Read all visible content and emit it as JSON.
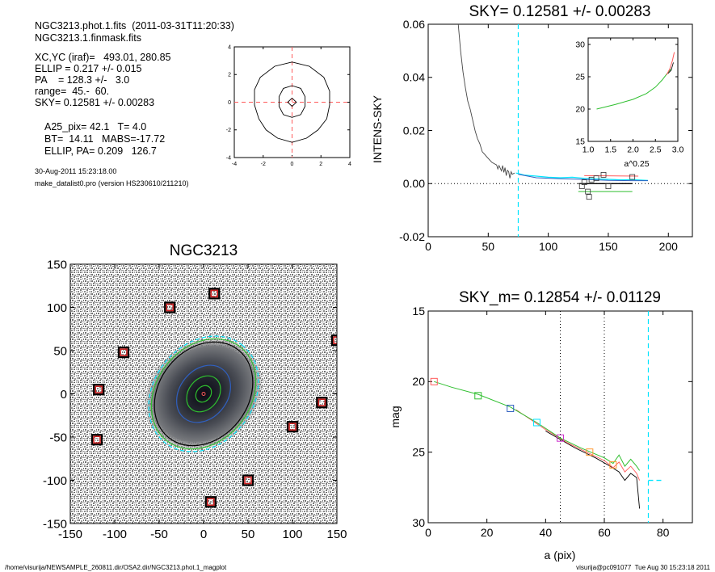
{
  "header": {
    "line1": "NGC3213.phot.1.fits  (2011-03-31T11:20:33)",
    "line2": "NGC3213.1.finmask.fits",
    "params": [
      "XC,YC (iraf)=   493.01, 280.85",
      "ELLIP = 0.217 +/- 0.015",
      "PA    = 128.3 +/-   3.0",
      "range=  45.-  60.",
      "SKY= 0.12581 +/- 0.00283"
    ],
    "params2": [
      "A25_pix= 42.1   T= 4.0",
      "BT=  14.11   MABS=-17.72",
      "ELLIP, PA= 0.209   126.7"
    ],
    "date": "30-Aug-2011 15:23:18.00",
    "program": "make_datalist0.pro (version HS230610/211210)"
  },
  "footer": {
    "left": "/home/visurija/NEWSAMPLE_260811.dir/OSA2.dir/NGC3213.phot.1_magplot",
    "right": "visurija@pc091077  Tue Aug 30 15:23:18 2011"
  },
  "colors": {
    "cyan": "#00e5ff",
    "green": "#2fbf2f",
    "red": "#ff5a5a",
    "blue": "#3060c0",
    "magenta": "#cc33cc",
    "orange": "#ff9933",
    "gray": "#9a9a9a"
  },
  "chart_data": [
    {
      "id": "contour",
      "type": "scatter",
      "title": "",
      "xlim": [
        -4,
        4
      ],
      "ylim": [
        -4,
        4
      ],
      "xticks": [
        "-4",
        "-2",
        "0",
        "2",
        "4"
      ],
      "yticks": [
        "-4",
        "-2",
        "0",
        "2",
        "4"
      ],
      "contours": [
        [
          [
            0,
            2.9
          ],
          [
            1.2,
            2.6
          ],
          [
            2.2,
            1.8
          ],
          [
            2.6,
            0.8
          ],
          [
            2.6,
            -0.2
          ],
          [
            2.4,
            -1.2
          ],
          [
            1.8,
            -2.0
          ],
          [
            1.0,
            -2.6
          ],
          [
            0,
            -2.9
          ],
          [
            -1.0,
            -2.6
          ],
          [
            -1.8,
            -2.0
          ],
          [
            -2.3,
            -1.2
          ],
          [
            -2.6,
            -0.2
          ],
          [
            -2.6,
            0.9
          ],
          [
            -2.2,
            1.8
          ],
          [
            -1.2,
            2.6
          ],
          [
            0,
            2.9
          ]
        ],
        [
          [
            0,
            1.2
          ],
          [
            0.6,
            1.0
          ],
          [
            0.9,
            0.4
          ],
          [
            0.9,
            -0.3
          ],
          [
            0.6,
            -0.9
          ],
          [
            0,
            -1.1
          ],
          [
            -0.6,
            -0.9
          ],
          [
            -0.9,
            -0.3
          ],
          [
            -0.9,
            0.4
          ],
          [
            -0.6,
            1.0
          ],
          [
            0,
            1.2
          ]
        ],
        [
          [
            0,
            0.3
          ],
          [
            0.3,
            0
          ],
          [
            0,
            -0.3
          ],
          [
            -0.3,
            0
          ],
          [
            0,
            0.3
          ]
        ]
      ],
      "center_dashes": {
        "x": 0,
        "y": 0
      }
    },
    {
      "id": "sky",
      "type": "line",
      "title": "SKY= 0.12581 +/- 0.00283",
      "ylabel": "INTENS-SKY",
      "xlim": [
        0,
        220
      ],
      "ylim": [
        -0.02,
        0.06
      ],
      "xticks": [
        "0",
        "50",
        "100",
        "150",
        "200"
      ],
      "yticks": [
        "-0.02",
        "0.00",
        "0.02",
        "0.04",
        "0.06"
      ],
      "profile": [
        [
          25,
          0.06
        ],
        [
          27,
          0.05
        ],
        [
          29,
          0.042
        ],
        [
          31,
          0.036
        ],
        [
          33,
          0.031
        ],
        [
          35,
          0.028
        ],
        [
          37,
          0.024
        ],
        [
          39,
          0.02
        ],
        [
          41,
          0.017
        ],
        [
          43,
          0.015
        ],
        [
          45,
          0.012
        ],
        [
          47,
          0.011
        ],
        [
          49,
          0.01
        ],
        [
          51,
          0.009
        ],
        [
          53,
          0.008
        ],
        [
          55,
          0.0075
        ],
        [
          57,
          0.007
        ],
        [
          58,
          0.0055
        ],
        [
          59,
          0.0068
        ],
        [
          61,
          0.0048
        ],
        [
          62,
          0.0068
        ],
        [
          63,
          0.0042
        ],
        [
          64,
          0.006
        ],
        [
          65,
          0.003
        ],
        [
          66,
          0.005
        ],
        [
          67,
          0.0045
        ],
        [
          68,
          0.002
        ],
        [
          69,
          0.0045
        ],
        [
          70,
          0.0035
        ],
        [
          72,
          0.004
        ]
      ],
      "cyan_line": [
        [
          73,
          0.004
        ],
        [
          80,
          0.0032
        ],
        [
          90,
          0.0028
        ],
        [
          100,
          0.0024
        ],
        [
          110,
          0.0022
        ],
        [
          120,
          0.0024
        ],
        [
          130,
          0.002
        ],
        [
          140,
          0.0018
        ],
        [
          150,
          0.0016
        ],
        [
          160,
          0.0014
        ],
        [
          170,
          0.0015
        ],
        [
          183,
          0.0012
        ]
      ],
      "blue_line": [
        [
          75,
          0.0035
        ],
        [
          90,
          0.0022
        ],
        [
          110,
          0.0018
        ],
        [
          130,
          0.0016
        ],
        [
          150,
          0.0012
        ],
        [
          170,
          0.0011
        ],
        [
          183,
          0.0011
        ]
      ],
      "red_line": [
        [
          130,
          0.003
        ],
        [
          175,
          0.0028
        ]
      ],
      "black_line": [
        [
          125,
          0.0
        ],
        [
          170,
          0.0
        ]
      ],
      "green_line": [
        [
          125,
          -0.003
        ],
        [
          170,
          -0.003
        ]
      ],
      "squares": [
        [
          128,
          -0.001
        ],
        [
          130,
          0.0005
        ],
        [
          133,
          -0.003
        ],
        [
          134,
          -0.005
        ],
        [
          136,
          0.0015
        ],
        [
          140,
          0.002
        ],
        [
          146,
          0.0033
        ],
        [
          150,
          -0.001
        ],
        [
          170,
          0.0025
        ]
      ],
      "vline_x": 75,
      "zero_dotted": 0,
      "inset": {
        "xlabel": "a^0.25",
        "xlim": [
          1.0,
          3.0
        ],
        "ylim": [
          15,
          31
        ],
        "xticks": [
          "1.0",
          "1.5",
          "2.0",
          "2.5",
          "3.0"
        ],
        "yticks": [
          "15",
          "20",
          "25",
          "30"
        ],
        "green": [
          [
            1.19,
            20.0
          ],
          [
            1.6,
            20.7
          ],
          [
            2.0,
            21.5
          ],
          [
            2.3,
            22.4
          ],
          [
            2.5,
            23.4
          ],
          [
            2.65,
            24.5
          ],
          [
            2.75,
            25.4
          ],
          [
            2.85,
            26.2
          ]
        ],
        "red": [
          [
            2.75,
            25.3
          ],
          [
            2.82,
            26.2
          ],
          [
            2.88,
            27.5
          ],
          [
            2.92,
            28.8
          ]
        ],
        "black": [
          [
            2.78,
            25.5
          ],
          [
            2.85,
            26.0
          ],
          [
            2.9,
            27.2
          ]
        ]
      }
    },
    {
      "id": "image",
      "type": "scatter",
      "title": "NGC3213",
      "xlim": [
        -150,
        150
      ],
      "ylim": [
        -150,
        150
      ],
      "xticks": [
        "-150",
        "-100",
        "-50",
        "0",
        "50",
        "100",
        "150"
      ],
      "yticks": [
        "-150",
        "-100",
        "-50",
        "0",
        "50",
        "100",
        "150"
      ],
      "masks": [
        [
          12,
          116
        ],
        [
          -38,
          100
        ],
        [
          -90,
          48
        ],
        [
          -118,
          5
        ],
        [
          -120,
          -53
        ],
        [
          133,
          -10
        ],
        [
          100,
          -38
        ],
        [
          50,
          -100
        ],
        [
          8,
          -125
        ],
        [
          150,
          62
        ]
      ],
      "ellipses": [
        {
          "a": 70,
          "b": 56,
          "pa": 128.3,
          "color": "#00e5ff",
          "dash": true
        },
        {
          "a": 67,
          "b": 53,
          "pa": 128.3,
          "color": "#2fbf2f",
          "dash": false
        },
        {
          "a": 63,
          "b": 50,
          "pa": 128.3,
          "color": "#000000",
          "dash": false
        },
        {
          "a": 35,
          "b": 27,
          "pa": 128.3,
          "color": "#3060c0",
          "dash": false
        },
        {
          "a": 22,
          "b": 17,
          "pa": 128.3,
          "color": "#2fbf2f",
          "dash": false
        },
        {
          "a": 10,
          "b": 8,
          "pa": 128.3,
          "color": "#2fbf2f",
          "dash": false
        }
      ]
    },
    {
      "id": "mag",
      "type": "line",
      "title": "SKY_m=  0.12854 +/- 0.01129",
      "xlabel": "a (pix)",
      "ylabel": "mag",
      "xlim": [
        0,
        90
      ],
      "ylim": [
        30,
        15
      ],
      "xticks": [
        "0",
        "20",
        "40",
        "60",
        "80"
      ],
      "yticks": [
        "15",
        "20",
        "25",
        "30"
      ],
      "green": [
        [
          2,
          20.0
        ],
        [
          8,
          20.4
        ],
        [
          17,
          20.9
        ],
        [
          28,
          21.8
        ],
        [
          37,
          22.9
        ],
        [
          45,
          24.0
        ],
        [
          52,
          24.7
        ],
        [
          60,
          25.4
        ],
        [
          63,
          25.8
        ],
        [
          65,
          25.2
        ],
        [
          67,
          26.0
        ],
        [
          69,
          25.5
        ],
        [
          71,
          26.0
        ],
        [
          72,
          26.3
        ]
      ],
      "red": [
        [
          30,
          22.0
        ],
        [
          40,
          23.4
        ],
        [
          48,
          24.4
        ],
        [
          55,
          25.1
        ],
        [
          60,
          25.6
        ],
        [
          63,
          26.1
        ],
        [
          65,
          25.7
        ],
        [
          67,
          26.4
        ],
        [
          69,
          26.0
        ],
        [
          71,
          26.5
        ],
        [
          72,
          27.0
        ]
      ],
      "black": [
        [
          40,
          23.5
        ],
        [
          50,
          24.7
        ],
        [
          57,
          25.4
        ],
        [
          62,
          26.0
        ],
        [
          65,
          26.4
        ],
        [
          67,
          27.0
        ],
        [
          69,
          26.5
        ],
        [
          71,
          26.8
        ],
        [
          72,
          29.0
        ]
      ],
      "cyan_tail": [
        [
          75,
          27.0
        ],
        [
          80,
          27.0
        ]
      ],
      "squares": [
        {
          "x": 2,
          "y": 20.0,
          "color": "#ff5a5a"
        },
        {
          "x": 17,
          "y": 21.0,
          "color": "#2fbf2f"
        },
        {
          "x": 28,
          "y": 21.9,
          "color": "#3060c0"
        },
        {
          "x": 37,
          "y": 22.9,
          "color": "#00e5ff"
        },
        {
          "x": 45,
          "y": 24.0,
          "color": "#cc33cc"
        },
        {
          "x": 55,
          "y": 25.0,
          "color": "#ff9933"
        },
        {
          "x": 63,
          "y": 25.9,
          "color": "#ff9933"
        }
      ],
      "dotted_vlines": [
        45,
        60
      ],
      "cyan_vline": 75
    }
  ]
}
